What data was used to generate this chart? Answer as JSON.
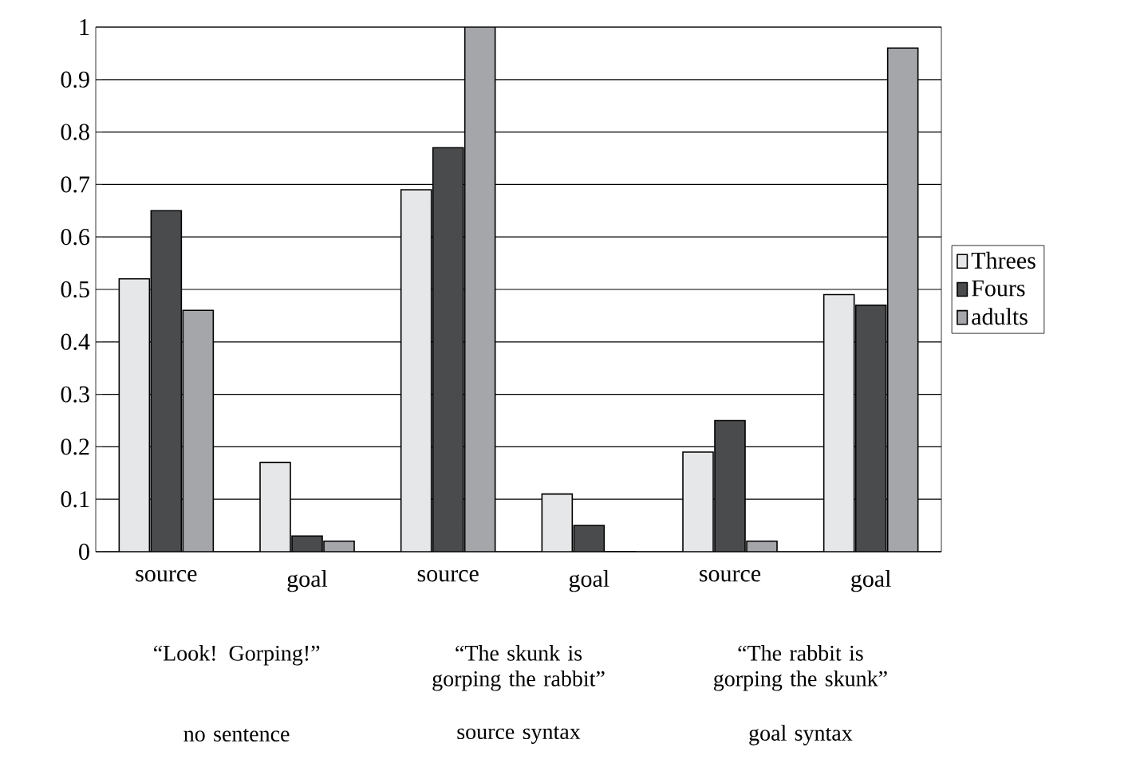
{
  "chart_data": {
    "type": "bar",
    "categories": [
      "source",
      "goal",
      "source",
      "goal",
      "source",
      "goal"
    ],
    "series": [
      {
        "name": "Threes",
        "color": "#e6e7e9",
        "values": [
          0.52,
          0.17,
          0.69,
          0.11,
          0.19,
          0.49
        ]
      },
      {
        "name": "Fours",
        "color": "#4a4b4d",
        "values": [
          0.65,
          0.03,
          0.77,
          0.05,
          0.25,
          0.47
        ]
      },
      {
        "name": "adults",
        "color": "#a5a6a9",
        "values": [
          0.46,
          0.02,
          1,
          0,
          0.02,
          0.96
        ]
      }
    ],
    "ylim": [
      0,
      1
    ],
    "yticks": [
      0,
      0.1,
      0.2,
      0.3,
      0.4,
      0.5,
      0.6,
      0.7,
      0.8,
      0.9,
      1
    ],
    "grid": "y",
    "legend": "right",
    "annotations": [
      "“Look! Gorping!”",
      "“The skunk is gorping the rabbit”",
      "“The rabbit is gorping the skunk”",
      "no sentence",
      "source syntax",
      "goal syntax"
    ]
  }
}
